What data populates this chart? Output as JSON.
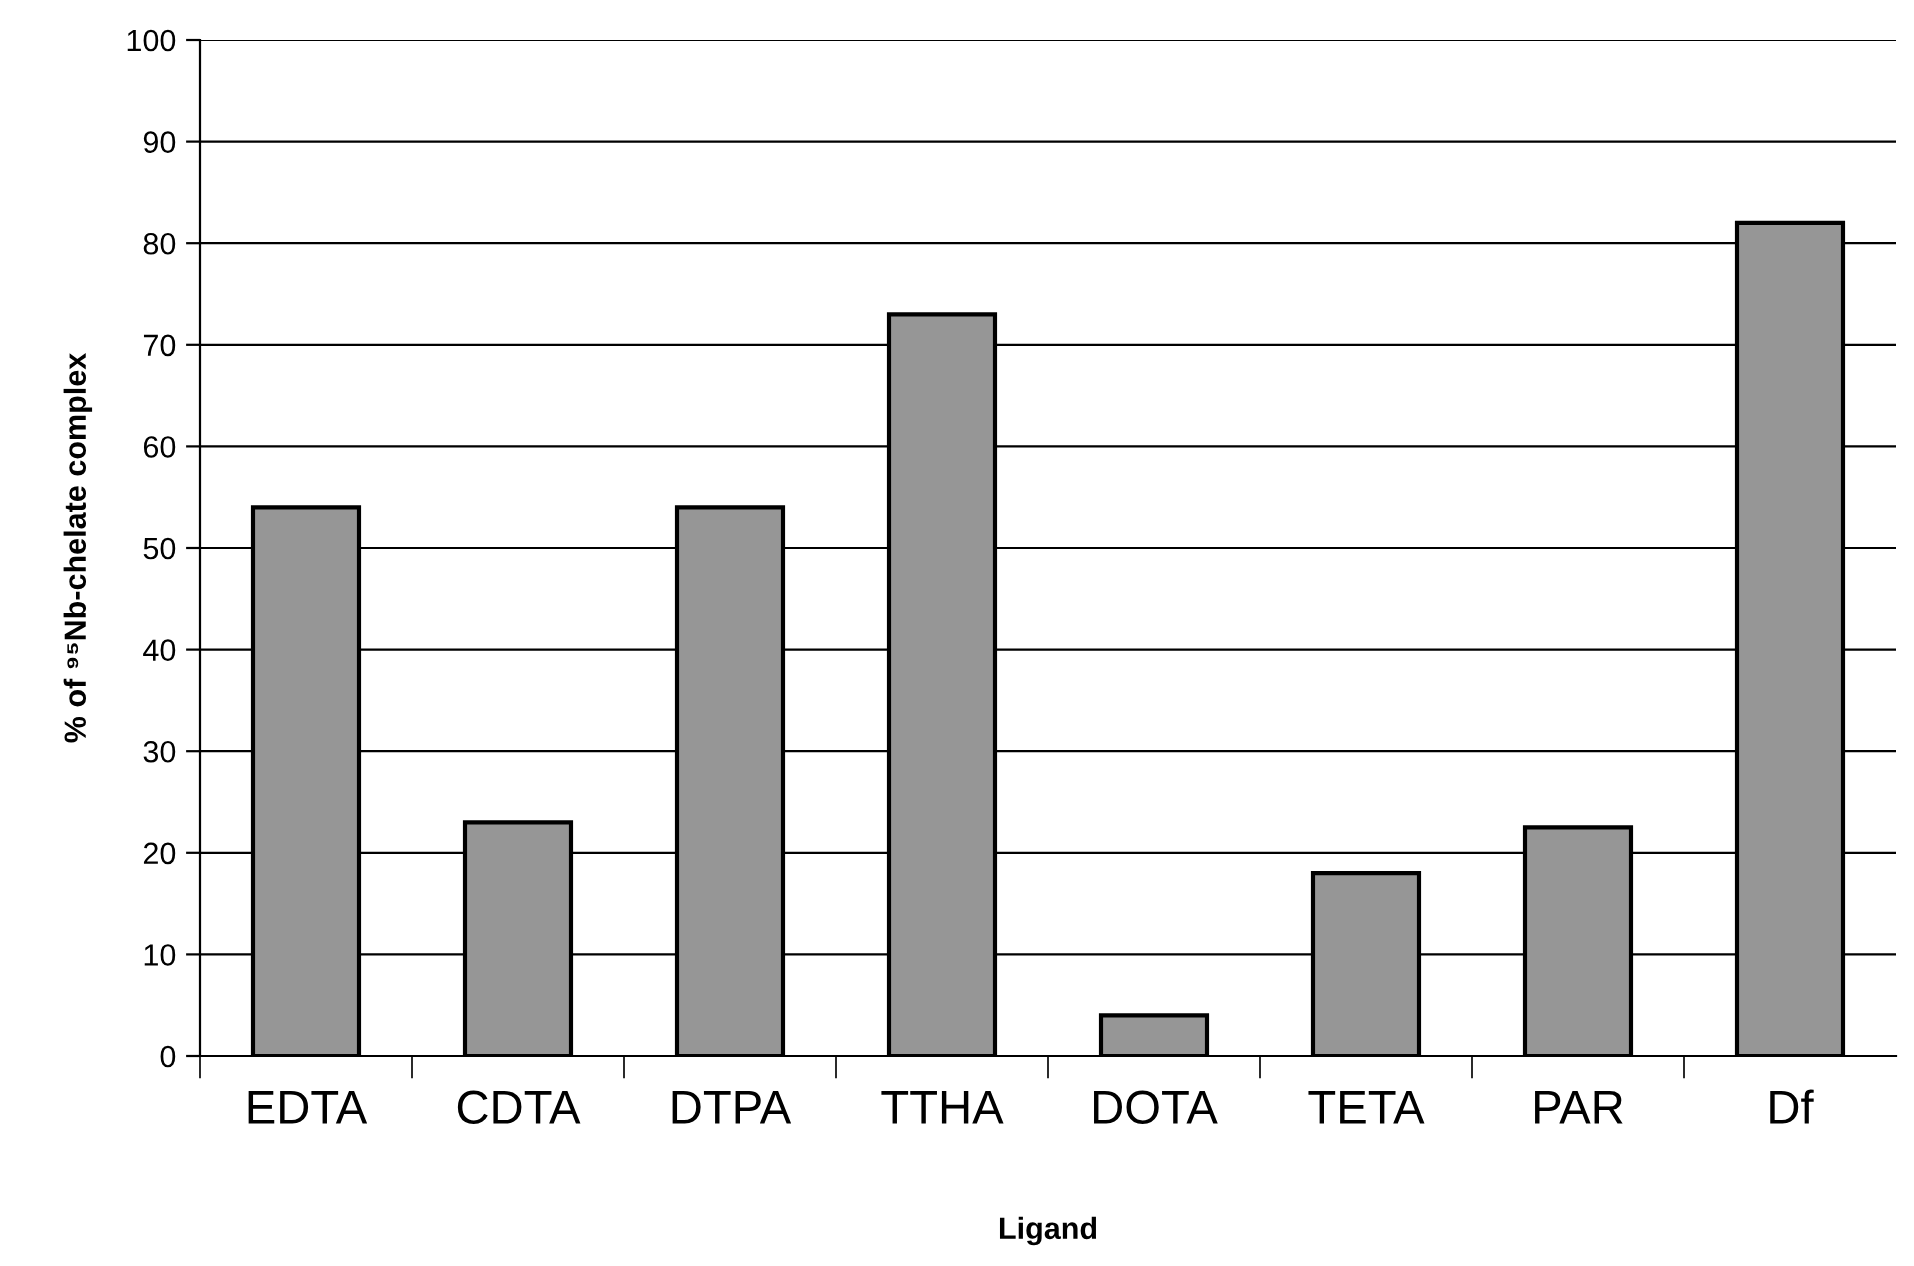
{
  "chart_data": {
    "type": "bar",
    "xlabel": "Ligand",
    "ylabel": "% of ⁹⁵Nb-chelate complex",
    "categories": [
      "EDTA",
      "CDTA",
      "DTPA",
      "TTHA",
      "DOTA",
      "TETA",
      "PAR",
      "Df"
    ],
    "values": [
      54,
      23,
      54,
      73,
      4,
      18,
      22.5,
      82
    ],
    "color": "#969696",
    "ylim": [
      0,
      100
    ],
    "yticks": [
      0,
      10,
      20,
      30,
      40,
      50,
      60,
      70,
      80,
      90,
      100
    ],
    "grid": "y"
  }
}
